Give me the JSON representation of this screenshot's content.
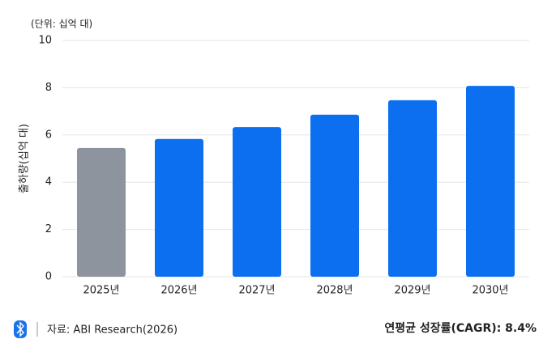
{
  "chart_data": {
    "type": "bar",
    "unit_note": "(단위: 십억 대)",
    "y_label": "출하량(십억 대)",
    "categories": [
      "2025년",
      "2026년",
      "2027년",
      "2028년",
      "2029년",
      "2030년"
    ],
    "values": [
      5.45,
      5.83,
      6.33,
      6.86,
      7.47,
      8.08
    ],
    "colors": [
      "#8e949e",
      "#0b6ff0",
      "#0b6ff0",
      "#0b6ff0",
      "#0b6ff0",
      "#0b6ff0"
    ],
    "ylim": [
      0,
      10
    ],
    "yticks": [
      0,
      2,
      4,
      6,
      8,
      10
    ],
    "grid": true,
    "source": "자료: ABI Research(2026)",
    "note": "연평균 성장률(CAGR): 8.4%"
  }
}
